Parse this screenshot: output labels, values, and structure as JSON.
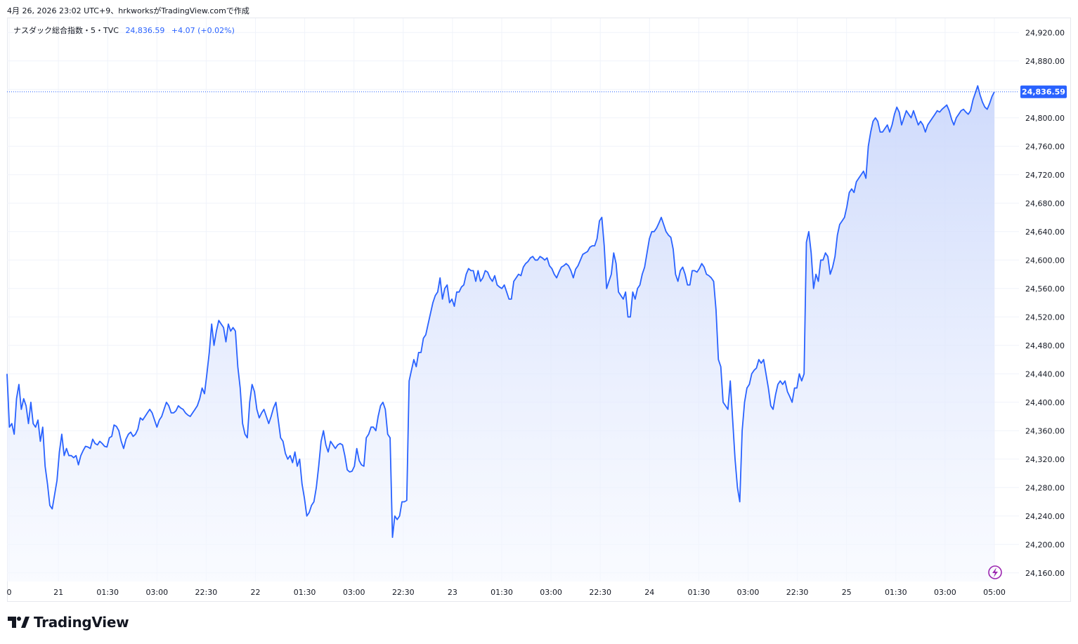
{
  "caption": "4月 26, 2026 23:02 UTC+9、hrkworksがTradingView.comで作成",
  "legend": {
    "symbol": "ナスダック総合指数・5・TVC",
    "price": "24,836.59",
    "change": "+4.07 (+0.02%)"
  },
  "brand": {
    "name": "TradingView",
    "icon": "tradingview-logo"
  },
  "colors": {
    "line": "#2962ff",
    "fill_top": "#c9d6fb",
    "fill_bottom": "#f5f8ff",
    "grid": "#f0f3fa"
  },
  "chart_data": {
    "type": "area",
    "title": "",
    "xlabel": "",
    "ylabel": "",
    "ylim": [
      24140,
      24940
    ],
    "y_ticks": [
      "24,160.00",
      "24,200.00",
      "24,240.00",
      "24,280.00",
      "24,320.00",
      "24,360.00",
      "24,400.00",
      "24,440.00",
      "24,480.00",
      "24,520.00",
      "24,560.00",
      "24,600.00",
      "24,640.00",
      "24,680.00",
      "24,720.00",
      "24,760.00",
      "24,800.00",
      "24,840.00",
      "24,880.00",
      "24,920.00"
    ],
    "x_ticks": [
      "0",
      "21",
      "01:30",
      "03:00",
      "22:30",
      "22",
      "01:30",
      "03:00",
      "22:30",
      "23",
      "01:30",
      "03:00",
      "22:30",
      "24",
      "01:30",
      "03:00",
      "22:30",
      "25",
      "01:30",
      "03:00",
      "05:00"
    ],
    "last_price": 24836.59,
    "last_price_label": "24,836.59",
    "grid": true,
    "series": [
      {
        "name": "",
        "values": [
          24440,
          24365,
          24370,
          24355,
          24405,
          24425,
          24390,
          24405,
          24395,
          24370,
          24400,
          24370,
          24365,
          24375,
          24345,
          24365,
          24310,
          24285,
          24255,
          24250,
          24270,
          24290,
          24330,
          24355,
          24325,
          24335,
          24325,
          24325,
          24322,
          24325,
          24312,
          24325,
          24332,
          24338,
          24337,
          24335,
          24348,
          24342,
          24340,
          24345,
          24342,
          24338,
          24337,
          24350,
          24352,
          24368,
          24366,
          24360,
          24345,
          24335,
          24348,
          24355,
          24358,
          24352,
          24355,
          24362,
          24378,
          24375,
          24380,
          24385,
          24390,
          24385,
          24375,
          24365,
          24375,
          24380,
          24390,
          24400,
          24395,
          24385,
          24385,
          24388,
          24395,
          24392,
          24390,
          24385,
          24382,
          24380,
          24385,
          24390,
          24395,
          24405,
          24420,
          24412,
          24440,
          24470,
          24510,
          24480,
          24500,
          24515,
          24510,
          24505,
          24485,
          24510,
          24500,
          24505,
          24500,
          24450,
          24420,
          24370,
          24355,
          24350,
          24400,
          24425,
          24415,
          24390,
          24378,
          24385,
          24390,
          24380,
          24370,
          24380,
          24392,
          24400,
          24375,
          24350,
          24345,
          24328,
          24320,
          24325,
          24315,
          24330,
          24310,
          24320,
          24285,
          24265,
          24240,
          24245,
          24255,
          24260,
          24280,
          24310,
          24345,
          24360,
          24340,
          24330,
          24345,
          24340,
          24335,
          24340,
          24342,
          24340,
          24325,
          24305,
          24302,
          24303,
          24310,
          24335,
          24318,
          24312,
          24310,
          24350,
          24355,
          24365,
          24365,
          24360,
          24380,
          24395,
          24400,
          24390,
          24355,
          24350,
          24210,
          24240,
          24235,
          24240,
          24260,
          24260,
          24262,
          24430,
          24445,
          24460,
          24450,
          24470,
          24470,
          24490,
          24495,
          24510,
          24525,
          24540,
          24550,
          24555,
          24575,
          24545,
          24560,
          24565,
          24540,
          24545,
          24535,
          24555,
          24555,
          24562,
          24565,
          24580,
          24588,
          24585,
          24585,
          24570,
          24585,
          24570,
          24575,
          24585,
          24583,
          24575,
          24570,
          24578,
          24565,
          24562,
          24560,
          24565,
          24555,
          24545,
          24545,
          24570,
          24575,
          24580,
          24578,
          24590,
          24595,
          24598,
          24603,
          24605,
          24600,
          24600,
          24605,
          24603,
          24600,
          24603,
          24592,
          24588,
          24580,
          24575,
          24583,
          24590,
          24592,
          24595,
          24592,
          24585,
          24575,
          24587,
          24592,
          24600,
          24608,
          24610,
          24612,
          24618,
          24620,
          24620,
          24630,
          24655,
          24660,
          24620,
          24560,
          24570,
          24580,
          24610,
          24595,
          24555,
          24550,
          24545,
          24555,
          24520,
          24520,
          24555,
          24545,
          24560,
          24565,
          24580,
          24590,
          24610,
          24630,
          24640,
          24640,
          24645,
          24652,
          24660,
          24650,
          24640,
          24635,
          24632,
          24615,
          24580,
          24570,
          24585,
          24590,
          24580,
          24565,
          24565,
          24585,
          24585,
          24583,
          24588,
          24595,
          24590,
          24580,
          24578,
          24575,
          24570,
          24530,
          24460,
          24450,
          24400,
          24395,
          24390,
          24430,
          24375,
          24320,
          24280,
          24260,
          24360,
          24400,
          24420,
          24425,
          24440,
          24445,
          24448,
          24460,
          24455,
          24460,
          24440,
          24420,
          24395,
          24390,
          24410,
          24425,
          24430,
          24425,
          24430,
          24415,
          24408,
          24400,
          24420,
          24420,
          24440,
          24430,
          24440,
          24625,
          24640,
          24610,
          24560,
          24580,
          24570,
          24600,
          24600,
          24610,
          24605,
          24580,
          24590,
          24605,
          24635,
          24650,
          24655,
          24660,
          24675,
          24695,
          24700,
          24695,
          24710,
          24715,
          24720,
          24725,
          24715,
          24760,
          24780,
          24795,
          24800,
          24795,
          24780,
          24780,
          24785,
          24790,
          24780,
          24790,
          24805,
          24815,
          24808,
          24790,
          24800,
          24810,
          24805,
          24800,
          24810,
          24800,
          24790,
          24795,
          24790,
          24780,
          24790,
          24795,
          24800,
          24805,
          24810,
          24808,
          24812,
          24815,
          24818,
          24810,
          24798,
          24790,
          24800,
          24805,
          24810,
          24812,
          24808,
          24805,
          24810,
          24825,
          24835,
          24845,
          24832,
          24822,
          24815,
          24812,
          24820,
          24830,
          24836.59
        ]
      }
    ]
  }
}
